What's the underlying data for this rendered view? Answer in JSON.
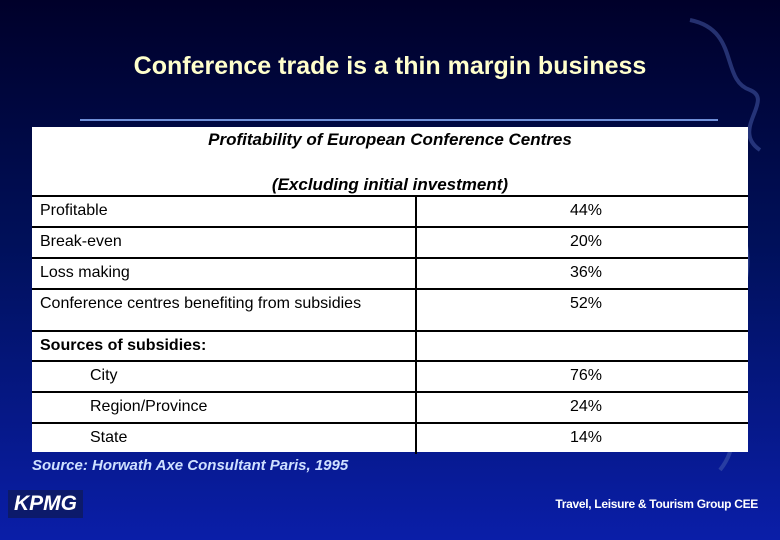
{
  "slide": {
    "title": "Conference trade is a thin margin business",
    "table": {
      "caption": [
        "Profitability of European Conference Centres",
        "(Excluding initial investment)"
      ],
      "rows": [
        {
          "label": "Profitable",
          "value": "44%"
        },
        {
          "label": "Break-even",
          "value": "20%"
        },
        {
          "label": "Loss making",
          "value": "36%"
        },
        {
          "label": "Conference centres benefiting from subsidies",
          "value": "52%"
        },
        {
          "label": "Sources of subsidies:"
        },
        {
          "label": "City",
          "value": "76%"
        },
        {
          "label": "Region/Province",
          "value": "24%"
        },
        {
          "label": "State",
          "value": "14%"
        }
      ]
    },
    "source": "Source: Horwath Axe Consultant Paris, 1995",
    "logo": "KPMG",
    "footer": "Travel, Leisure & Tourism Group CEE"
  }
}
